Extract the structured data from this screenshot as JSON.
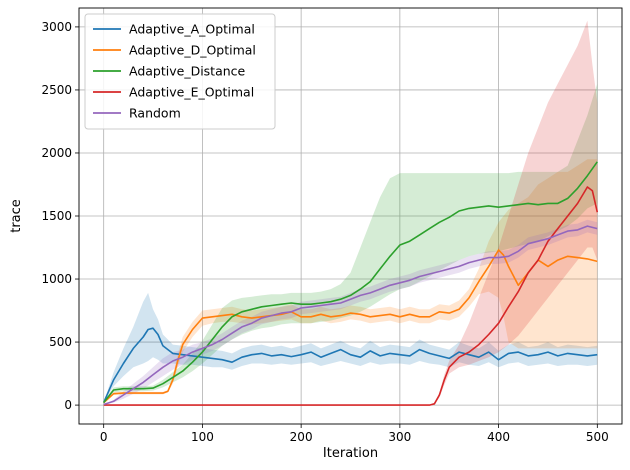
{
  "chart_data": {
    "type": "line",
    "xlabel": "Iteration",
    "ylabel": "trace",
    "xlim": [
      -25,
      525
    ],
    "ylim": [
      -150,
      3150
    ],
    "xticks": [
      0,
      100,
      200,
      300,
      400,
      500
    ],
    "yticks": [
      0,
      500,
      1000,
      1500,
      2000,
      2500,
      3000
    ],
    "grid": true,
    "legend_position": "upper-left",
    "series": [
      {
        "name": "Adaptive_A_Optimal",
        "color": "#1f77b4",
        "x": [
          0,
          10,
          20,
          30,
          40,
          45,
          50,
          55,
          60,
          65,
          70,
          80,
          90,
          100,
          110,
          120,
          130,
          140,
          150,
          160,
          170,
          180,
          190,
          200,
          210,
          220,
          230,
          240,
          250,
          260,
          270,
          280,
          290,
          300,
          310,
          320,
          330,
          340,
          350,
          360,
          370,
          380,
          390,
          400,
          410,
          420,
          430,
          440,
          450,
          460,
          470,
          480,
          490,
          500
        ],
        "y": [
          20,
          200,
          330,
          450,
          540,
          600,
          610,
          560,
          470,
          440,
          410,
          400,
          390,
          380,
          370,
          360,
          340,
          380,
          400,
          410,
          390,
          400,
          385,
          400,
          420,
          380,
          410,
          440,
          400,
          380,
          430,
          390,
          410,
          400,
          390,
          440,
          410,
          390,
          370,
          420,
          400,
          380,
          420,
          360,
          410,
          420,
          390,
          400,
          420,
          390,
          410,
          400,
          390,
          400
        ],
        "lower": [
          20,
          150,
          230,
          300,
          330,
          350,
          380,
          360,
          330,
          330,
          330,
          320,
          320,
          310,
          300,
          300,
          280,
          310,
          330,
          330,
          320,
          330,
          320,
          330,
          340,
          310,
          330,
          350,
          330,
          310,
          340,
          320,
          330,
          330,
          320,
          350,
          330,
          320,
          300,
          340,
          320,
          310,
          340,
          300,
          330,
          340,
          310,
          320,
          330,
          310,
          320,
          320,
          310,
          320
        ],
        "upper": [
          20,
          260,
          450,
          620,
          820,
          890,
          760,
          680,
          560,
          520,
          480,
          470,
          460,
          450,
          440,
          430,
          410,
          450,
          470,
          480,
          460,
          470,
          450,
          470,
          490,
          450,
          480,
          510,
          470,
          450,
          510,
          460,
          480,
          470,
          460,
          520,
          480,
          460,
          440,
          500,
          470,
          450,
          500,
          430,
          480,
          500,
          460,
          470,
          500,
          460,
          480,
          470,
          460,
          470
        ]
      },
      {
        "name": "Adaptive_D_Optimal",
        "color": "#ff7f0e",
        "x": [
          0,
          10,
          20,
          30,
          40,
          50,
          60,
          65,
          70,
          75,
          80,
          90,
          100,
          110,
          120,
          130,
          140,
          150,
          160,
          170,
          180,
          190,
          200,
          210,
          220,
          230,
          240,
          250,
          260,
          270,
          280,
          290,
          300,
          310,
          320,
          330,
          340,
          350,
          360,
          370,
          380,
          390,
          400,
          405,
          410,
          420,
          430,
          440,
          450,
          460,
          470,
          480,
          490,
          500
        ],
        "y": [
          20,
          90,
          95,
          95,
          95,
          95,
          95,
          110,
          200,
          350,
          480,
          600,
          690,
          700,
          710,
          720,
          700,
          690,
          700,
          710,
          720,
          740,
          700,
          700,
          720,
          700,
          710,
          730,
          720,
          700,
          710,
          720,
          700,
          720,
          700,
          700,
          740,
          730,
          760,
          850,
          980,
          1100,
          1230,
          1190,
          1100,
          950,
          1050,
          1150,
          1100,
          1150,
          1180,
          1170,
          1160,
          1140
        ],
        "lower": [
          20,
          80,
          85,
          85,
          85,
          85,
          85,
          100,
          170,
          300,
          420,
          540,
          630,
          650,
          660,
          660,
          650,
          640,
          650,
          660,
          670,
          680,
          650,
          650,
          670,
          650,
          660,
          680,
          670,
          650,
          660,
          670,
          650,
          670,
          650,
          650,
          680,
          670,
          700,
          780,
          880,
          900,
          850,
          700,
          500,
          450,
          450,
          450,
          450,
          450,
          450,
          450,
          450,
          450
        ],
        "upper": [
          20,
          100,
          105,
          105,
          105,
          105,
          105,
          120,
          230,
          400,
          540,
          660,
          750,
          760,
          770,
          780,
          760,
          750,
          760,
          770,
          780,
          800,
          760,
          760,
          780,
          760,
          770,
          790,
          780,
          760,
          770,
          780,
          760,
          780,
          760,
          760,
          800,
          790,
          830,
          920,
          1080,
          1300,
          1450,
          1500,
          1550,
          1600,
          1650,
          1750,
          1800,
          1850,
          1850,
          1900,
          1950,
          1950
        ]
      },
      {
        "name": "Adaptive_Distance",
        "color": "#2ca02c",
        "x": [
          0,
          10,
          20,
          30,
          40,
          50,
          60,
          70,
          80,
          90,
          100,
          110,
          120,
          130,
          140,
          150,
          160,
          170,
          180,
          190,
          200,
          210,
          220,
          230,
          240,
          250,
          260,
          270,
          280,
          290,
          300,
          310,
          320,
          330,
          340,
          350,
          360,
          370,
          380,
          390,
          400,
          410,
          420,
          430,
          440,
          450,
          460,
          470,
          480,
          490,
          500
        ],
        "y": [
          20,
          120,
          130,
          130,
          130,
          135,
          170,
          220,
          270,
          340,
          420,
          520,
          620,
          700,
          740,
          760,
          780,
          790,
          800,
          810,
          800,
          800,
          810,
          820,
          840,
          870,
          920,
          980,
          1080,
          1180,
          1270,
          1300,
          1350,
          1400,
          1450,
          1490,
          1540,
          1560,
          1570,
          1580,
          1570,
          1580,
          1590,
          1600,
          1590,
          1600,
          1600,
          1640,
          1720,
          1820,
          1930
        ],
        "lower": [
          20,
          100,
          110,
          110,
          110,
          115,
          140,
          180,
          220,
          270,
          330,
          400,
          470,
          520,
          560,
          590,
          610,
          620,
          640,
          650,
          650,
          650,
          660,
          670,
          690,
          710,
          740,
          780,
          830,
          880,
          920,
          940,
          980,
          1020,
          1070,
          1110,
          1150,
          1180,
          1200,
          1210,
          1220,
          1240,
          1260,
          1280,
          1300,
          1340,
          1380,
          1420,
          1480,
          1560,
          1600
        ],
        "upper": [
          20,
          140,
          150,
          150,
          150,
          155,
          200,
          260,
          320,
          410,
          510,
          640,
          770,
          830,
          850,
          860,
          870,
          880,
          880,
          890,
          890,
          890,
          900,
          920,
          960,
          1050,
          1250,
          1450,
          1650,
          1800,
          1840,
          1840,
          1840,
          1840,
          1840,
          1840,
          1840,
          1840,
          1840,
          1840,
          1840,
          1840,
          1850,
          1850,
          1850,
          1850,
          1850,
          1900,
          2100,
          2300,
          2550
        ]
      },
      {
        "name": "Adaptive_E_Optimal",
        "color": "#d62728",
        "x": [
          0,
          50,
          100,
          150,
          200,
          250,
          300,
          330,
          335,
          340,
          345,
          350,
          360,
          370,
          380,
          390,
          400,
          410,
          420,
          430,
          440,
          450,
          460,
          470,
          480,
          490,
          495,
          500
        ],
        "y": [
          0,
          0,
          0,
          0,
          0,
          0,
          0,
          0,
          10,
          80,
          200,
          300,
          380,
          420,
          480,
          560,
          650,
          780,
          900,
          1050,
          1150,
          1300,
          1400,
          1500,
          1600,
          1730,
          1700,
          1530
        ],
        "lower": [
          0,
          0,
          0,
          0,
          0,
          0,
          0,
          0,
          5,
          60,
          160,
          250,
          300,
          320,
          350,
          380,
          420,
          480,
          550,
          650,
          750,
          850,
          950,
          1050,
          1150,
          1250,
          1250,
          1150
        ],
        "upper": [
          0,
          0,
          0,
          0,
          0,
          0,
          0,
          0,
          15,
          100,
          240,
          350,
          480,
          650,
          850,
          1050,
          1250,
          1500,
          1750,
          2000,
          2200,
          2400,
          2550,
          2700,
          2850,
          3050,
          2700,
          2400
        ]
      },
      {
        "name": "Random",
        "color": "#9467bd",
        "x": [
          0,
          10,
          20,
          30,
          40,
          50,
          60,
          70,
          80,
          90,
          100,
          110,
          120,
          130,
          140,
          150,
          160,
          170,
          180,
          190,
          200,
          210,
          220,
          230,
          240,
          250,
          260,
          270,
          280,
          290,
          300,
          310,
          320,
          330,
          340,
          350,
          360,
          370,
          380,
          390,
          400,
          410,
          420,
          430,
          440,
          450,
          460,
          470,
          480,
          490,
          500
        ],
        "y": [
          5,
          30,
          80,
          130,
          180,
          240,
          300,
          350,
          380,
          420,
          450,
          480,
          520,
          570,
          620,
          650,
          690,
          710,
          730,
          740,
          770,
          780,
          790,
          800,
          810,
          840,
          870,
          890,
          920,
          950,
          970,
          990,
          1020,
          1040,
          1060,
          1080,
          1100,
          1130,
          1150,
          1170,
          1170,
          1180,
          1220,
          1280,
          1300,
          1320,
          1350,
          1380,
          1390,
          1420,
          1400
        ],
        "lower": [
          5,
          20,
          50,
          90,
          130,
          180,
          230,
          280,
          320,
          360,
          400,
          430,
          470,
          520,
          570,
          600,
          640,
          660,
          680,
          690,
          720,
          730,
          740,
          750,
          760,
          790,
          820,
          840,
          870,
          900,
          920,
          940,
          970,
          990,
          1010,
          1030,
          1050,
          1080,
          1100,
          1120,
          1120,
          1130,
          1170,
          1230,
          1250,
          1270,
          1300,
          1330,
          1340,
          1370,
          1350
        ],
        "upper": [
          5,
          40,
          110,
          170,
          230,
          300,
          370,
          420,
          440,
          480,
          500,
          530,
          570,
          620,
          670,
          700,
          740,
          760,
          780,
          790,
          820,
          830,
          840,
          850,
          860,
          890,
          920,
          940,
          970,
          1000,
          1020,
          1040,
          1070,
          1090,
          1110,
          1130,
          1150,
          1180,
          1200,
          1220,
          1220,
          1230,
          1270,
          1330,
          1350,
          1370,
          1400,
          1430,
          1440,
          1470,
          1450
        ]
      }
    ]
  }
}
